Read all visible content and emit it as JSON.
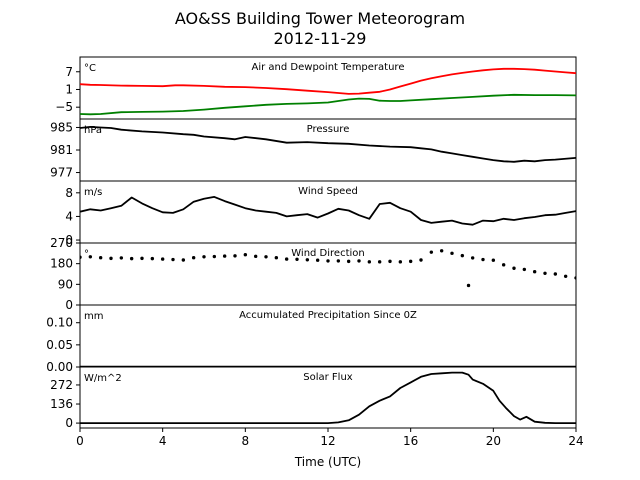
{
  "figure": {
    "title_line1": "AO&SS Building Tower Meteorogram",
    "title_line2": "2012-11-29",
    "xlabel": "Time (UTC)"
  },
  "chart_data": [
    {
      "type": "line",
      "title": "Air and Dewpoint Temperature",
      "unit": "°C",
      "ylim": [
        -9,
        12
      ],
      "yticks": [
        -5,
        1,
        7
      ],
      "xlim": [
        0,
        24
      ],
      "series": [
        {
          "color": "#ff0000",
          "x": [
            0,
            0.5,
            1,
            2,
            3,
            4,
            4.6,
            5,
            6,
            7,
            8,
            9,
            10,
            11,
            12,
            12.5,
            13,
            13.5,
            14,
            14.5,
            15,
            15.5,
            16,
            16.5,
            17,
            17.5,
            18,
            18.5,
            19,
            19.5,
            20,
            20.5,
            21,
            21.5,
            22,
            22.5,
            23,
            23.5,
            24
          ],
          "values": [
            2.8,
            2.6,
            2.5,
            2.3,
            2.2,
            2.1,
            2.4,
            2.4,
            2.2,
            1.9,
            1.8,
            1.5,
            1.1,
            0.6,
            0.1,
            -0.2,
            -0.5,
            -0.4,
            -0.1,
            0.2,
            1.0,
            2.0,
            3.0,
            4.0,
            4.8,
            5.5,
            6.1,
            6.6,
            7.1,
            7.5,
            7.8,
            8.0,
            8.0,
            7.9,
            7.7,
            7.4,
            7.1,
            6.8,
            6.5
          ]
        },
        {
          "color": "#008000",
          "x": [
            0,
            0.5,
            1,
            2,
            3,
            4,
            5,
            6,
            7,
            8,
            9,
            10,
            11,
            12,
            12.5,
            13,
            13.5,
            14,
            14.5,
            15,
            15.5,
            16,
            17,
            18,
            19,
            20,
            21,
            22,
            23,
            24
          ],
          "values": [
            -7.3,
            -7.4,
            -7.3,
            -6.7,
            -6.6,
            -6.5,
            -6.3,
            -5.8,
            -5.2,
            -4.7,
            -4.2,
            -3.9,
            -3.7,
            -3.4,
            -2.9,
            -2.4,
            -2.1,
            -2.2,
            -2.8,
            -2.9,
            -2.9,
            -2.7,
            -2.3,
            -1.9,
            -1.5,
            -1.1,
            -0.8,
            -0.9,
            -0.9,
            -1.0
          ]
        }
      ]
    },
    {
      "type": "line",
      "title": "Pressure",
      "unit": "hPa",
      "ylim": [
        975.5,
        986.5
      ],
      "yticks": [
        977,
        981,
        985
      ],
      "xlim": [
        0,
        24
      ],
      "series": [
        {
          "color": "#000000",
          "x": [
            0,
            0.5,
            1,
            1.5,
            2,
            3,
            4,
            5,
            5.5,
            6,
            7,
            7.5,
            8,
            9,
            10,
            11,
            12,
            13,
            14,
            15,
            16,
            16.5,
            17,
            17.5,
            18,
            18.5,
            19,
            19.5,
            20,
            20.5,
            21,
            21.5,
            22,
            22.5,
            23,
            24
          ],
          "values": [
            984.9,
            985.1,
            985.0,
            984.9,
            984.6,
            984.3,
            984.1,
            983.8,
            983.7,
            983.4,
            983.1,
            982.9,
            983.3,
            982.9,
            982.3,
            982.4,
            982.2,
            982.1,
            981.8,
            981.6,
            981.5,
            981.3,
            981.1,
            980.7,
            980.4,
            980.1,
            979.8,
            979.5,
            979.2,
            979.0,
            978.9,
            979.1,
            979.0,
            979.2,
            979.3,
            979.6
          ]
        }
      ]
    },
    {
      "type": "line",
      "title": "Wind Speed",
      "unit": "m/s",
      "ylim": [
        -0.5,
        10
      ],
      "yticks": [
        0,
        4,
        8
      ],
      "xlim": [
        0,
        24
      ],
      "series": [
        {
          "color": "#000000",
          "x": [
            0,
            0.5,
            1,
            1.5,
            2,
            2.5,
            3,
            3.5,
            4,
            4.5,
            5,
            5.5,
            6,
            6.5,
            7,
            7.5,
            8,
            8.5,
            9,
            9.5,
            10,
            10.5,
            11,
            11.5,
            12,
            12.5,
            13,
            13.5,
            14,
            14.5,
            15,
            15.5,
            16,
            16.5,
            17,
            17.5,
            18,
            18.5,
            19,
            19.5,
            20,
            20.5,
            21,
            21.5,
            22,
            22.5,
            23,
            23.5,
            24
          ],
          "values": [
            4.8,
            5.2,
            5.0,
            5.4,
            5.8,
            7.2,
            6.2,
            5.4,
            4.7,
            4.6,
            5.2,
            6.5,
            7.0,
            7.3,
            6.6,
            6.0,
            5.4,
            5.0,
            4.8,
            4.6,
            4.0,
            4.2,
            4.4,
            3.8,
            4.5,
            5.3,
            5.0,
            4.2,
            3.6,
            6.1,
            6.3,
            5.4,
            4.8,
            3.4,
            2.9,
            3.1,
            3.3,
            2.8,
            2.6,
            3.3,
            3.2,
            3.6,
            3.4,
            3.7,
            3.9,
            4.2,
            4.3,
            4.6,
            4.9
          ]
        }
      ]
    },
    {
      "type": "scatter",
      "title": "Wind Direction",
      "unit": "°",
      "ylim": [
        0,
        270
      ],
      "yticks": [
        0,
        90,
        180,
        270
      ],
      "xlim": [
        0,
        24
      ],
      "series": [
        {
          "color": "#000000",
          "x": [
            0,
            0.5,
            1,
            1.5,
            2,
            2.5,
            3,
            3.5,
            4,
            4.5,
            5,
            5.5,
            6,
            6.5,
            7,
            7.5,
            8,
            8.5,
            9,
            9.5,
            10,
            10.5,
            11,
            11.5,
            12,
            12.5,
            13,
            13.5,
            14,
            14.5,
            15,
            15.5,
            16,
            16.5,
            17,
            17.5,
            18,
            18.5,
            18.8,
            19,
            19.5,
            20,
            20.5,
            21,
            21.5,
            22,
            22.5,
            23,
            23.5,
            24
          ],
          "values": [
            208,
            210,
            206,
            203,
            205,
            202,
            203,
            202,
            200,
            198,
            196,
            206,
            210,
            211,
            213,
            214,
            219,
            212,
            210,
            206,
            200,
            199,
            197,
            195,
            192,
            192,
            190,
            192,
            188,
            188,
            190,
            188,
            190,
            196,
            230,
            236,
            225,
            215,
            85,
            205,
            198,
            195,
            175,
            160,
            155,
            145,
            138,
            135,
            125,
            118
          ]
        }
      ]
    },
    {
      "type": "line",
      "title": "Accumulated Precipitation Since 0Z",
      "unit": "mm",
      "ylim": [
        0,
        0.14
      ],
      "yticks": [
        0.0,
        0.05,
        0.1
      ],
      "xlim": [
        0,
        24
      ],
      "series": [
        {
          "color": "#000000",
          "x": [
            0,
            24
          ],
          "values": [
            0.0,
            0.0
          ]
        }
      ]
    },
    {
      "type": "line",
      "title": "Solar Flux",
      "unit": "W/m^2",
      "ylim": [
        -35,
        400
      ],
      "yticks": [
        0,
        136,
        272
      ],
      "xlim": [
        0,
        24
      ],
      "series": [
        {
          "color": "#000000",
          "x": [
            0,
            12.0,
            12.5,
            13.0,
            13.5,
            14.0,
            14.5,
            15.0,
            15.5,
            16.0,
            16.5,
            17.0,
            17.5,
            18.0,
            18.5,
            18.8,
            19.0,
            19.5,
            20.0,
            20.3,
            20.6,
            21.0,
            21.3,
            21.6,
            22.0,
            22.5,
            23,
            24
          ],
          "values": [
            0,
            0,
            5,
            20,
            60,
            120,
            160,
            190,
            250,
            290,
            330,
            350,
            355,
            360,
            360,
            345,
            310,
            280,
            230,
            160,
            110,
            50,
            25,
            45,
            10,
            2,
            0,
            0
          ]
        }
      ]
    }
  ]
}
